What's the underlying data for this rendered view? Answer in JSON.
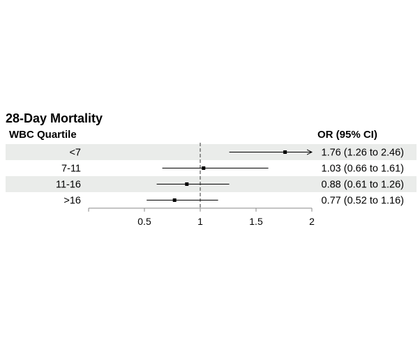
{
  "title": "28-Day Mortality",
  "left_header": "WBC Quartile",
  "right_header": "OR (95% CI)",
  "chart_data": {
    "type": "forest",
    "rows": [
      {
        "label": "<7",
        "or": 1.76,
        "lo": 1.26,
        "hi": 2.46,
        "text": "1.76 (1.26 to 2.46)",
        "arrow_right": true,
        "shaded": true
      },
      {
        "label": "7-11",
        "or": 1.03,
        "lo": 0.66,
        "hi": 1.61,
        "text": "1.03 (0.66 to 1.61)",
        "arrow_right": false,
        "shaded": false
      },
      {
        "label": "11-16",
        "or": 0.88,
        "lo": 0.61,
        "hi": 1.26,
        "text": "0.88 (0.61 to 1.26)",
        "arrow_right": false,
        "shaded": true
      },
      {
        "label": ">16",
        "or": 0.77,
        "lo": 0.52,
        "hi": 1.16,
        "text": "0.77 (0.52 to 1.16)",
        "arrow_right": false,
        "shaded": false
      }
    ],
    "x_ticks": [
      0.5,
      1,
      1.5,
      2
    ],
    "x_tick_labels": [
      "0.5",
      "1",
      "1.5",
      "2"
    ],
    "xlim": [
      0.0,
      2.0
    ],
    "reference_line": 1,
    "shade_color": "#eaecea"
  }
}
